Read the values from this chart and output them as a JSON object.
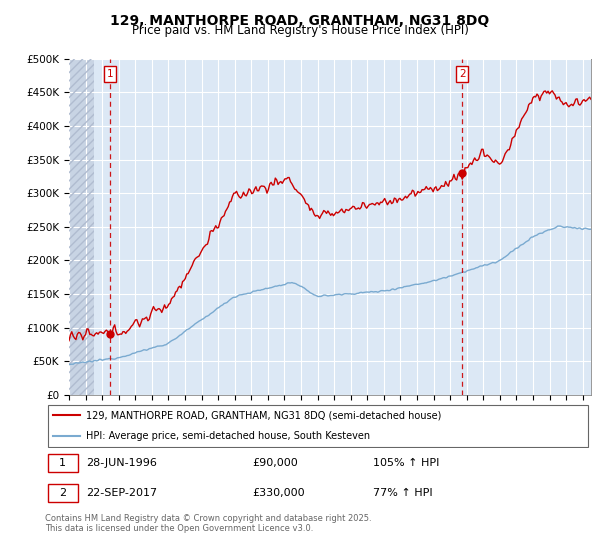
{
  "title": "129, MANTHORPE ROAD, GRANTHAM, NG31 8DQ",
  "subtitle": "Price paid vs. HM Land Registry's House Price Index (HPI)",
  "ylim": [
    0,
    500000
  ],
  "yticks": [
    0,
    50000,
    100000,
    150000,
    200000,
    250000,
    300000,
    350000,
    400000,
    450000,
    500000
  ],
  "ytick_labels": [
    "£0",
    "£50K",
    "£100K",
    "£150K",
    "£200K",
    "£250K",
    "£300K",
    "£350K",
    "£400K",
    "£450K",
    "£500K"
  ],
  "xlim_start": 1994.0,
  "xlim_end": 2025.5,
  "sale1_date": 1996.49,
  "sale1_price": 90000,
  "sale2_date": 2017.73,
  "sale2_price": 330000,
  "legend_line1": "129, MANTHORPE ROAD, GRANTHAM, NG31 8DQ (semi-detached house)",
  "legend_line2": "HPI: Average price, semi-detached house, South Kesteven",
  "footnote": "Contains HM Land Registry data © Crown copyright and database right 2025.\nThis data is licensed under the Open Government Licence v3.0.",
  "red_color": "#cc0000",
  "blue_color": "#7aaad0",
  "bg_color": "#dce8f5",
  "hatch_color": "#b0bcd0",
  "title_fontsize": 10,
  "subtitle_fontsize": 8.5,
  "tick_fontsize": 7.5
}
